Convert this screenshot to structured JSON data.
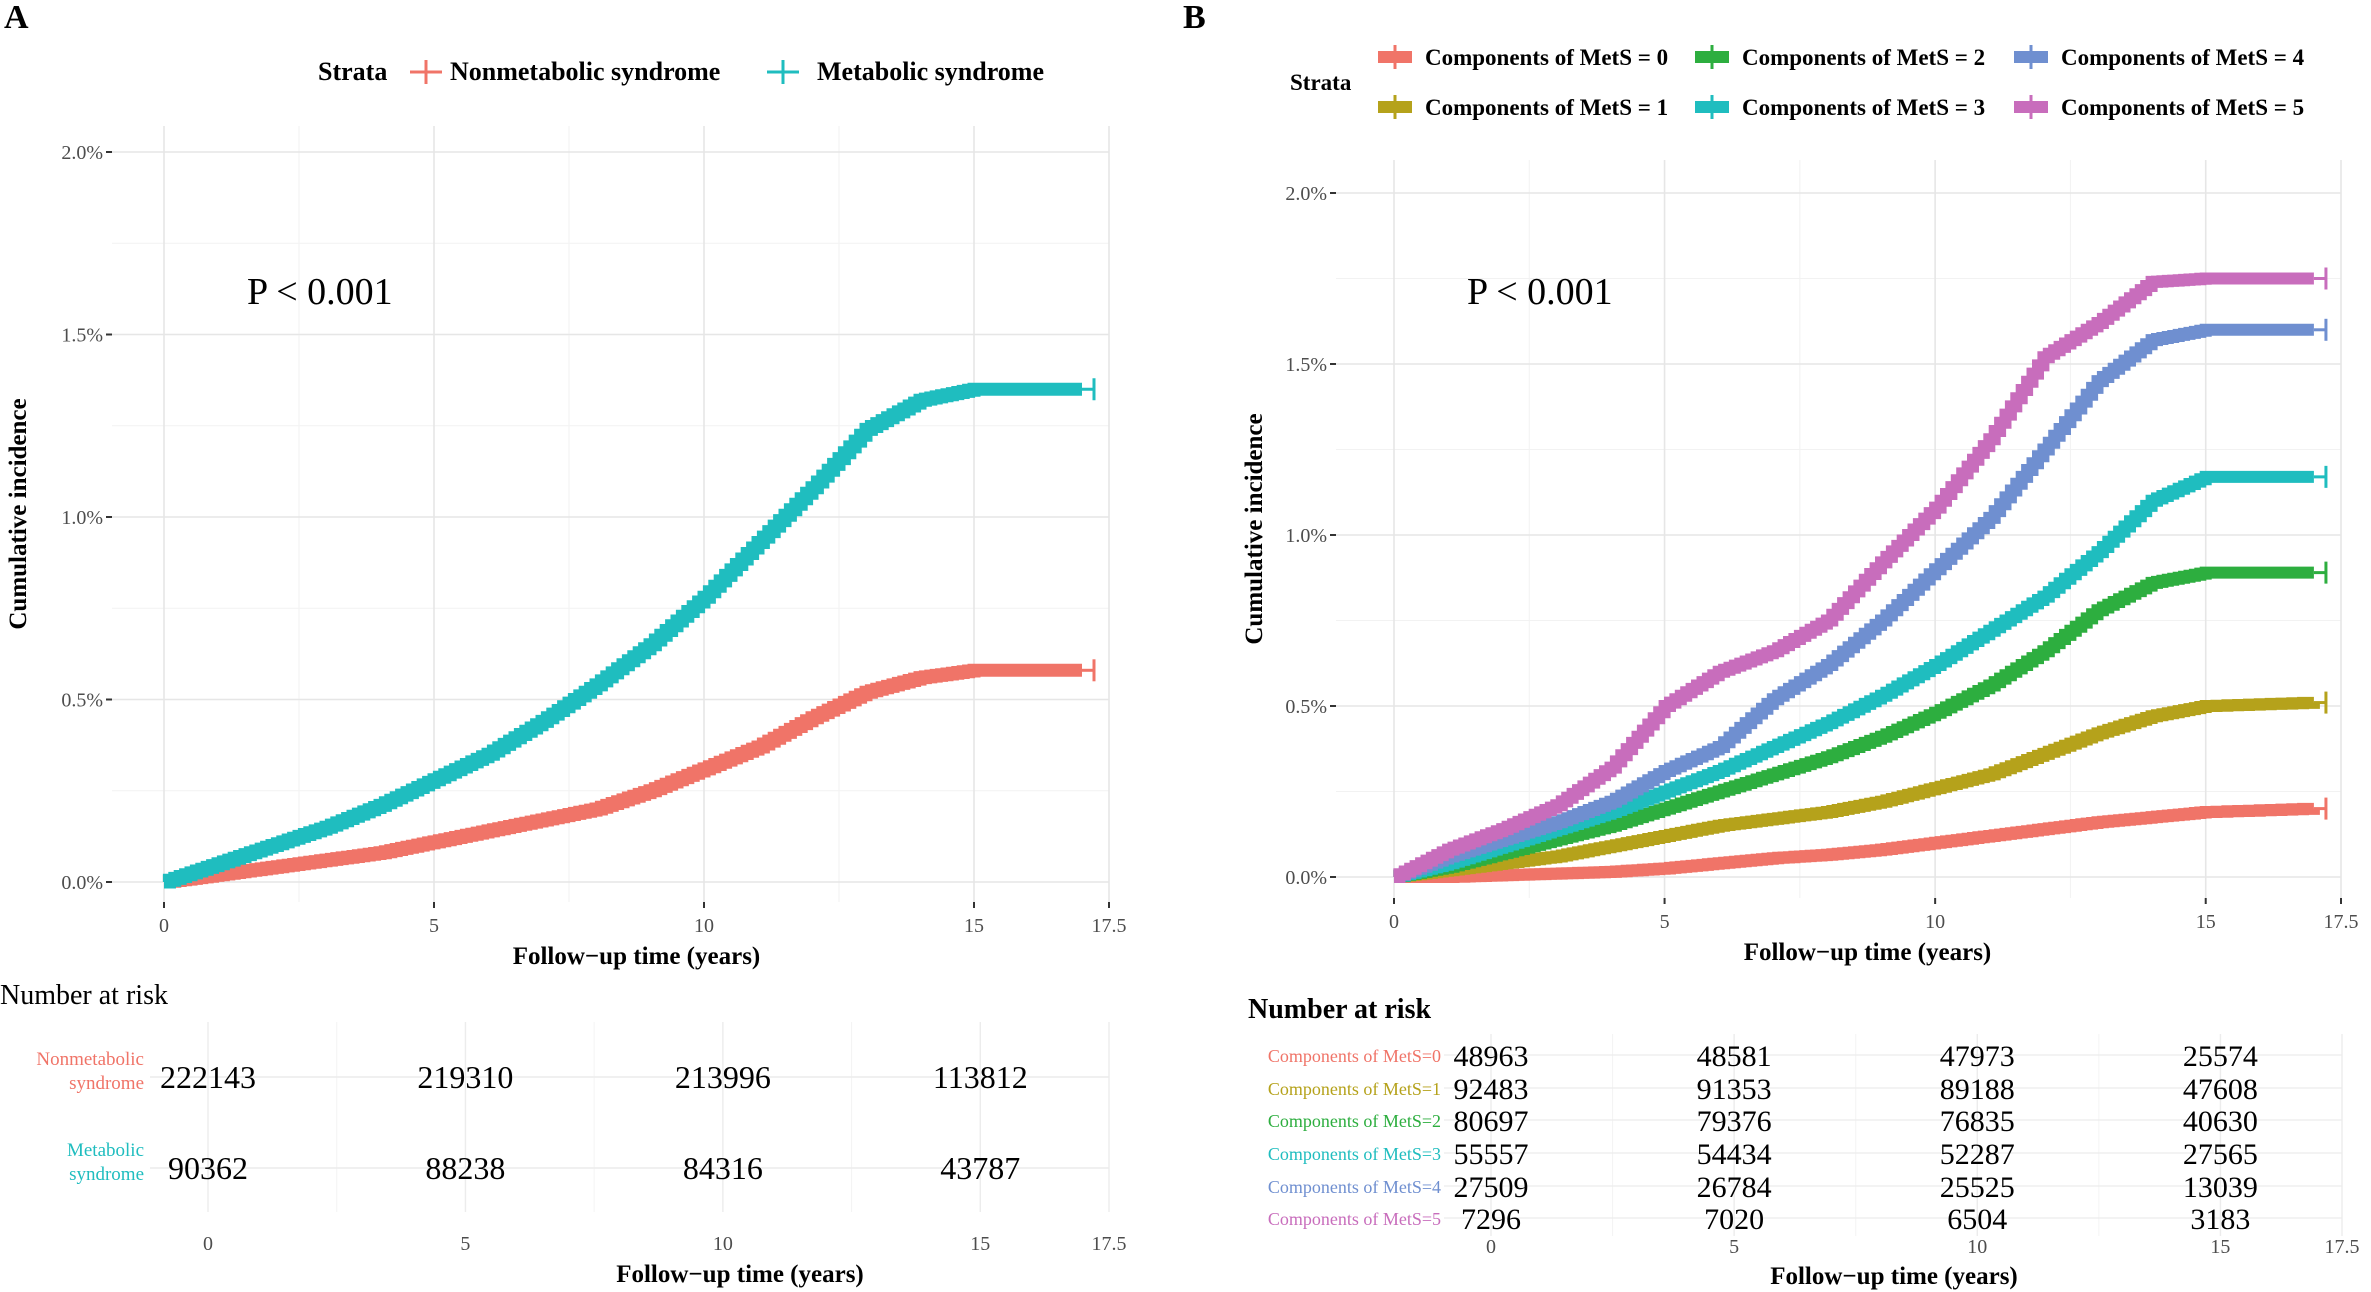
{
  "chart_data": [
    {
      "panel": "A",
      "type": "line",
      "title": "",
      "xlabel": "Follow−up time (years)",
      "ylabel": "Cumulative incidence",
      "xlim": [
        0,
        17.5
      ],
      "ylim": [
        0,
        2.0
      ],
      "xticks": [
        0,
        5,
        10,
        15,
        17.5
      ],
      "xtick_labels": [
        "0",
        "5",
        "10",
        "15",
        "17.5"
      ],
      "yticks": [
        0,
        0.5,
        1.0,
        1.5,
        2.0
      ],
      "ytick_labels": [
        "0.0%",
        "0.5%",
        "1.0%",
        "1.5%",
        "2.0%"
      ],
      "grid": true,
      "annotation": "P < 0.001",
      "legend": {
        "title": "Strata",
        "position": "top",
        "entries": [
          "Nonmetabolic syndrome",
          "Metabolic syndrome"
        ]
      },
      "series": [
        {
          "name": "Nonmetabolic syndrome",
          "color": "#F07468",
          "x": [
            0,
            1,
            2,
            3,
            4,
            5,
            6,
            7,
            8,
            9,
            10,
            11,
            12,
            13,
            14,
            15,
            17
          ],
          "values": [
            0.0,
            0.02,
            0.04,
            0.06,
            0.08,
            0.11,
            0.14,
            0.17,
            0.2,
            0.25,
            0.31,
            0.37,
            0.45,
            0.52,
            0.56,
            0.58,
            0.58
          ]
        },
        {
          "name": "Metabolic syndrome",
          "color": "#1FBDBF",
          "x": [
            0,
            1,
            2,
            3,
            4,
            5,
            6,
            7,
            8,
            9,
            10,
            11,
            12,
            13,
            14,
            15,
            17
          ],
          "values": [
            0.0,
            0.05,
            0.1,
            0.15,
            0.21,
            0.28,
            0.35,
            0.44,
            0.54,
            0.65,
            0.78,
            0.93,
            1.08,
            1.24,
            1.32,
            1.35,
            1.35
          ]
        }
      ],
      "risk_table": {
        "title": "Number at risk",
        "x_positions": [
          0,
          5,
          10,
          15
        ],
        "rows": [
          {
            "label_line1": "Nonmetabolic",
            "label_line2": "syndrome",
            "color": "#F07468",
            "values": [
              "222143",
              "219310",
              "213996",
              "113812"
            ]
          },
          {
            "label_line1": "Metabolic",
            "label_line2": "syndrome",
            "color": "#1FBDBF",
            "values": [
              "90362",
              "88238",
              "84316",
              "43787"
            ]
          }
        ],
        "xlabel": "Follow−up time (years)",
        "xtick_labels": [
          "0",
          "5",
          "10",
          "15",
          "17.5"
        ]
      }
    },
    {
      "panel": "B",
      "type": "line",
      "title": "",
      "xlabel": "Follow−up time (years)",
      "ylabel": "Cumulative incidence",
      "xlim": [
        0,
        17.5
      ],
      "ylim": [
        0,
        2.0
      ],
      "xticks": [
        0,
        5,
        10,
        15,
        17.5
      ],
      "xtick_labels": [
        "0",
        "5",
        "10",
        "15",
        "17.5"
      ],
      "yticks": [
        0,
        0.5,
        1.0,
        1.5,
        2.0
      ],
      "ytick_labels": [
        "0.0%",
        "0.5%",
        "1.0%",
        "1.5%",
        "2.0%"
      ],
      "grid": true,
      "annotation": "P < 0.001",
      "legend": {
        "title": "Strata",
        "position": "top",
        "entries": [
          "Components of MetS = 0",
          "Components of MetS = 1",
          "Components of MetS = 2",
          "Components of MetS = 3",
          "Components of MetS = 4",
          "Components of MetS = 5"
        ]
      },
      "series": [
        {
          "name": "Components of MetS = 0",
          "color": "#F07468",
          "x": [
            0,
            1,
            2,
            3,
            4,
            5,
            6,
            7,
            8,
            9,
            10,
            11,
            12,
            13,
            14,
            15,
            17
          ],
          "values": [
            0.0,
            0.0,
            0.005,
            0.01,
            0.015,
            0.025,
            0.04,
            0.055,
            0.065,
            0.08,
            0.1,
            0.12,
            0.14,
            0.16,
            0.175,
            0.19,
            0.2
          ]
        },
        {
          "name": "Components of MetS = 1",
          "color": "#B5A21B",
          "x": [
            0,
            1,
            2,
            3,
            4,
            5,
            6,
            7,
            8,
            9,
            10,
            11,
            12,
            13,
            14,
            15,
            17
          ],
          "values": [
            0.0,
            0.02,
            0.04,
            0.06,
            0.09,
            0.12,
            0.15,
            0.17,
            0.19,
            0.22,
            0.26,
            0.3,
            0.36,
            0.42,
            0.47,
            0.5,
            0.51
          ]
        },
        {
          "name": "Components of MetS = 2",
          "color": "#2DAE3F",
          "x": [
            0,
            1,
            2,
            3,
            4,
            5,
            6,
            7,
            8,
            9,
            10,
            11,
            12,
            13,
            14,
            15,
            17
          ],
          "values": [
            0.0,
            0.03,
            0.07,
            0.11,
            0.15,
            0.2,
            0.25,
            0.3,
            0.35,
            0.41,
            0.48,
            0.56,
            0.66,
            0.78,
            0.86,
            0.89,
            0.89
          ]
        },
        {
          "name": "Components of MetS = 3",
          "color": "#1FBDBF",
          "x": [
            0,
            1,
            2,
            3,
            4,
            5,
            6,
            7,
            8,
            9,
            10,
            11,
            12,
            13,
            14,
            15,
            17
          ],
          "values": [
            0.0,
            0.04,
            0.09,
            0.14,
            0.19,
            0.25,
            0.31,
            0.38,
            0.45,
            0.53,
            0.62,
            0.72,
            0.82,
            0.95,
            1.1,
            1.17,
            1.17
          ]
        },
        {
          "name": "Components of MetS = 4",
          "color": "#6F8FD0",
          "x": [
            0,
            1,
            2,
            3,
            4,
            5,
            6,
            7,
            8,
            9,
            10,
            11,
            12,
            13,
            14,
            15,
            17
          ],
          "values": [
            0.0,
            0.06,
            0.11,
            0.16,
            0.22,
            0.31,
            0.38,
            0.52,
            0.62,
            0.75,
            0.9,
            1.05,
            1.25,
            1.45,
            1.57,
            1.6,
            1.6
          ]
        },
        {
          "name": "Components of MetS = 5",
          "color": "#C86DBC",
          "x": [
            0,
            1,
            2,
            3,
            4,
            5,
            6,
            7,
            8,
            9,
            10,
            11,
            12,
            13,
            14,
            15,
            17
          ],
          "values": [
            0.0,
            0.08,
            0.14,
            0.21,
            0.32,
            0.5,
            0.6,
            0.66,
            0.75,
            0.92,
            1.08,
            1.28,
            1.52,
            1.62,
            1.74,
            1.75,
            1.75
          ]
        }
      ],
      "risk_table": {
        "title": "Number at risk",
        "x_positions": [
          0,
          5,
          10,
          15
        ],
        "rows": [
          {
            "label": "Components of MetS=0",
            "color": "#F07468",
            "values": [
              "48963",
              "48581",
              "47973",
              "25574"
            ]
          },
          {
            "label": "Components of MetS=1",
            "color": "#B5A21B",
            "values": [
              "92483",
              "91353",
              "89188",
              "47608"
            ]
          },
          {
            "label": "Components of MetS=2",
            "color": "#2DAE3F",
            "values": [
              "80697",
              "79376",
              "76835",
              "40630"
            ]
          },
          {
            "label": "Components of MetS=3",
            "color": "#1FBDBF",
            "values": [
              "55557",
              "54434",
              "52287",
              "27565"
            ]
          },
          {
            "label": "Components of MetS=4",
            "color": "#6F8FD0",
            "values": [
              "27509",
              "26784",
              "25525",
              "13039"
            ]
          },
          {
            "label": "Components of MetS=5",
            "color": "#C86DBC",
            "values": [
              "7296",
              "7020",
              "6504",
              "3183"
            ]
          }
        ],
        "xlabel": "Follow−up time (years)",
        "xtick_labels": [
          "0",
          "5",
          "10",
          "15",
          "17.5"
        ]
      }
    }
  ]
}
